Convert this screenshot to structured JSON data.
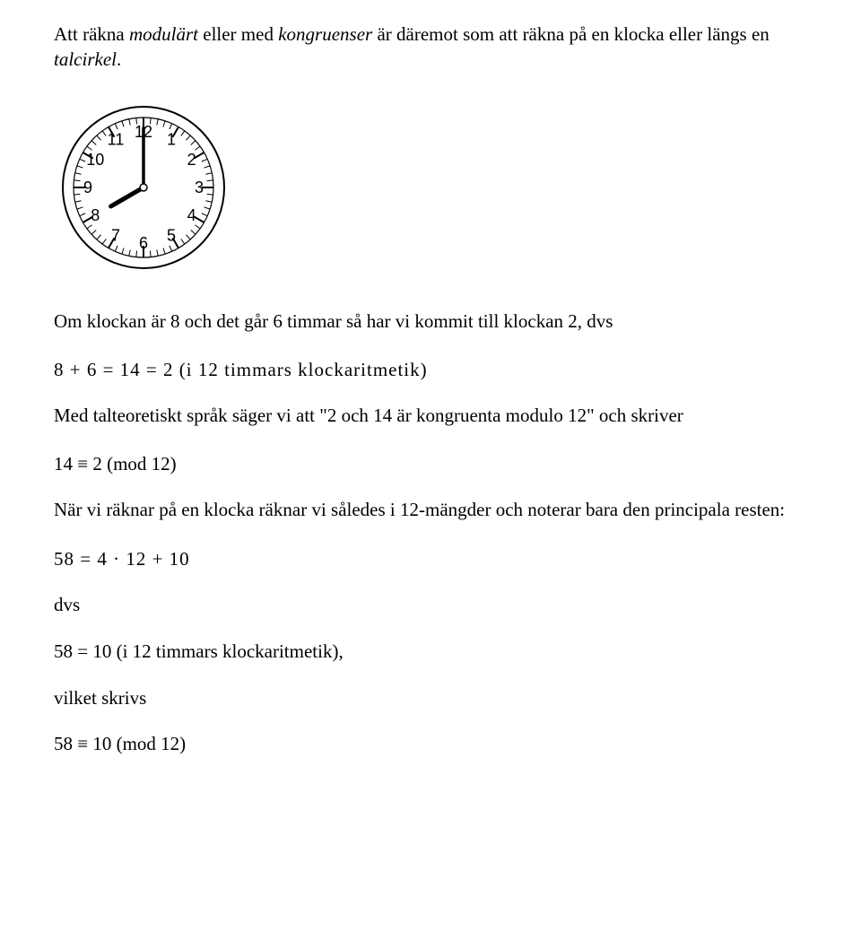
{
  "para1": {
    "t1": "Att räkna ",
    "em1": "modulärt",
    "t2": " eller med ",
    "em2": "kongruenser",
    "t3": " är däremot som att räkna på en klocka eller längs en ",
    "em3": "talcirkel",
    "t4": "."
  },
  "clock": {
    "hour_numbers": [
      "12",
      "1",
      "2",
      "3",
      "4",
      "5",
      "6",
      "7",
      "8",
      "9",
      "10",
      "11"
    ],
    "outer_radius": 90,
    "inner_radius": 78,
    "number_radius": 62,
    "tick_len_major": 13,
    "tick_len_minor": 7,
    "hour_hand_angle_deg": 240,
    "minute_hand_angle_deg": 0,
    "hour_hand_len": 42,
    "minute_hand_len": 66,
    "stroke": "#000000",
    "fill": "#ffffff",
    "font_size": 18
  },
  "para2": "Om klockan är 8 och det går 6 timmar så har vi kommit till klockan 2, dvs",
  "eq1": "8 + 6 = 14 = 2  (i 12 timmars klockaritmetik)",
  "para3": "Med talteoretiskt språk säger vi att \"2 och 14 är kongruenta modulo 12\" och skriver",
  "eq2": "14 ≡ 2 (mod 12)",
  "para4": "När vi räknar på en klocka räknar vi således i 12-mängder och noterar bara den principala resten:",
  "eq3": "58 = 4 · 12 + 10",
  "dvs": "dvs",
  "para5": "58 = 10 (i 12 timmars klockaritmetik),",
  "para6": "vilket skrivs",
  "eq4": "58 ≡ 10 (mod 12)"
}
